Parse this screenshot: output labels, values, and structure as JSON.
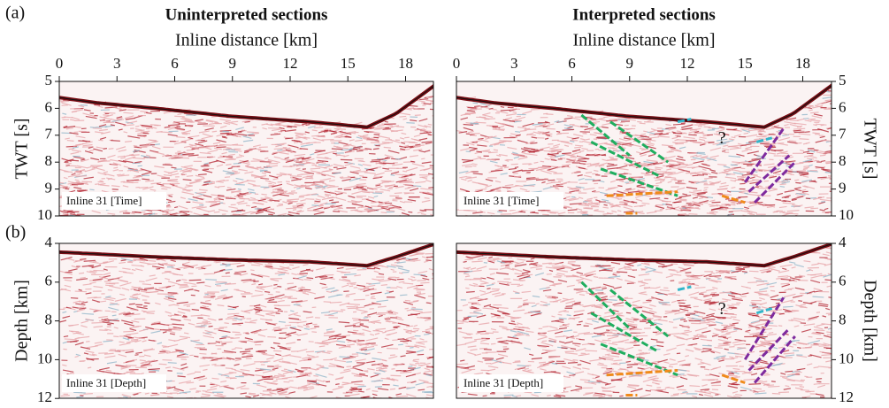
{
  "figure": {
    "panel_labels": [
      "(a)",
      "(b)"
    ],
    "columns": [
      {
        "title": "Uninterpreted sections",
        "x_axis_label": "Inline distance [km]",
        "x_ticks": [
          0,
          3,
          6,
          9,
          12,
          15,
          18
        ]
      },
      {
        "title": "Interpreted sections",
        "x_axis_label": "Inline distance [km]",
        "x_ticks": [
          0,
          3,
          6,
          9,
          12,
          15,
          18
        ]
      }
    ],
    "rows": [
      {
        "y_axis_label": "TWT [s]",
        "y_ticks": [
          5,
          6,
          7,
          8,
          9,
          10
        ],
        "inset_labels": [
          "Inline 31 [Time]",
          "Inline 31 [Time]"
        ],
        "question_mark": "?"
      },
      {
        "y_axis_label": "Depth [km]",
        "y_ticks": [
          4,
          6,
          8,
          10,
          12
        ],
        "inset_labels": [
          "Inline 31 [Depth]",
          "Inline 31 [Depth]"
        ],
        "question_mark": "?"
      }
    ]
  }
}
